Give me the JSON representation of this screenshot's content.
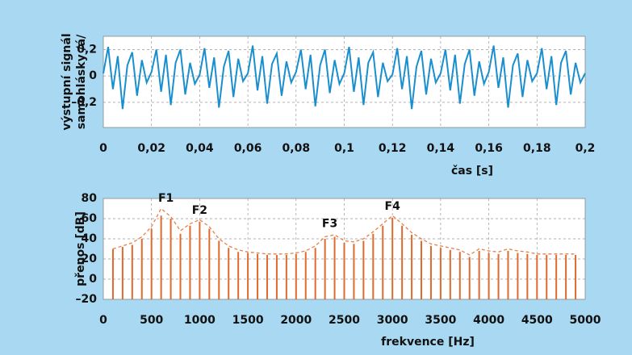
{
  "chart_data": [
    {
      "type": "line",
      "xlabel": "čas [s]",
      "ylabel": [
        "výstupní signál",
        "samohlásky /á/"
      ],
      "xlim": [
        0,
        0.2
      ],
      "ylim": [
        -0.39,
        0.3
      ],
      "xticks": [
        0,
        {
          "value": 0.02,
          "label": "0,02"
        },
        {
          "value": 0.04,
          "label": "0,04"
        },
        {
          "value": 0.06,
          "label": "0,06"
        },
        {
          "value": 0.08,
          "label": "0,08"
        },
        {
          "value": 0.1,
          "label": "0,1"
        },
        {
          "value": 0.12,
          "label": "0,12"
        },
        {
          "value": 0.14,
          "label": "0,14"
        },
        {
          "value": 0.16,
          "label": "0,16"
        },
        {
          "value": 0.18,
          "label": "0,18"
        },
        {
          "value": 0.2,
          "label": "0,2"
        }
      ],
      "yticks": [
        {
          "value": -0.2,
          "label": "–0,2"
        },
        0,
        {
          "value": 0.2,
          "label": "0,2"
        }
      ],
      "grid": true,
      "x": [
        0,
        0.002,
        0.004,
        0.006,
        0.008,
        0.01,
        0.012,
        0.014,
        0.016,
        0.018,
        0.02,
        0.022,
        0.024,
        0.026,
        0.028,
        0.03,
        0.032,
        0.034,
        0.036,
        0.038,
        0.04,
        0.042,
        0.044,
        0.046,
        0.048,
        0.05,
        0.052,
        0.054,
        0.056,
        0.058,
        0.06,
        0.062,
        0.064,
        0.066,
        0.068,
        0.07,
        0.072,
        0.074,
        0.076,
        0.078,
        0.08,
        0.082,
        0.084,
        0.086,
        0.088,
        0.09,
        0.092,
        0.094,
        0.096,
        0.098,
        0.1,
        0.102,
        0.104,
        0.106,
        0.108,
        0.11,
        0.112,
        0.114,
        0.116,
        0.118,
        0.12,
        0.122,
        0.124,
        0.126,
        0.128,
        0.13,
        0.132,
        0.134,
        0.136,
        0.138,
        0.14,
        0.142,
        0.144,
        0.146,
        0.148,
        0.15,
        0.152,
        0.154,
        0.156,
        0.158,
        0.16,
        0.162,
        0.164,
        0.166,
        0.168,
        0.17,
        0.172,
        0.174,
        0.176,
        0.178,
        0.18,
        0.182,
        0.184,
        0.186,
        0.188,
        0.19,
        0.192,
        0.194,
        0.196,
        0.198,
        0.2
      ],
      "series": [
        {
          "color": "#1a8fd0",
          "values": [
            0.02,
            0.22,
            -0.1,
            0.15,
            -0.25,
            0.08,
            0.18,
            -0.15,
            0.12,
            -0.05,
            0.03,
            0.2,
            -0.12,
            0.16,
            -0.22,
            0.1,
            0.2,
            -0.14,
            0.1,
            -0.06,
            0.01,
            0.21,
            -0.09,
            0.14,
            -0.24,
            0.07,
            0.19,
            -0.16,
            0.13,
            -0.04,
            0.02,
            0.23,
            -0.11,
            0.15,
            -0.21,
            0.09,
            0.17,
            -0.15,
            0.11,
            -0.05,
            0.03,
            0.2,
            -0.1,
            0.16,
            -0.23,
            0.08,
            0.2,
            -0.13,
            0.12,
            -0.06,
            0.02,
            0.22,
            -0.12,
            0.14,
            -0.22,
            0.1,
            0.18,
            -0.16,
            0.1,
            -0.04,
            0.01,
            0.21,
            -0.1,
            0.15,
            -0.25,
            0.07,
            0.19,
            -0.14,
            0.13,
            -0.05,
            0.02,
            0.2,
            -0.11,
            0.16,
            -0.21,
            0.09,
            0.2,
            -0.15,
            0.11,
            -0.06,
            0.03,
            0.23,
            -0.09,
            0.14,
            -0.24,
            0.08,
            0.17,
            -0.16,
            0.12,
            -0.04,
            0.02,
            0.21,
            -0.1,
            0.15,
            -0.22,
            0.1,
            0.19,
            -0.14,
            0.1,
            -0.05,
            0.02
          ]
        }
      ]
    },
    {
      "type": "stem",
      "xlabel": "frekvence [Hz]",
      "ylabel": [
        "přenos [dB]"
      ],
      "xlim": [
        0,
        5000
      ],
      "ylim": [
        -20,
        80
      ],
      "xticks": [
        0,
        500,
        1000,
        1500,
        2000,
        2500,
        3000,
        3500,
        4000,
        4500,
        5000
      ],
      "yticks": [
        {
          "value": -20,
          "label": "–20"
        },
        0,
        20,
        40,
        60,
        80
      ],
      "grid": true,
      "x": [
        100,
        200,
        300,
        400,
        500,
        600,
        700,
        800,
        900,
        1000,
        1100,
        1200,
        1300,
        1400,
        1500,
        1600,
        1700,
        1800,
        1900,
        2000,
        2100,
        2200,
        2300,
        2400,
        2500,
        2600,
        2700,
        2800,
        2900,
        3000,
        3100,
        3200,
        3300,
        3400,
        3500,
        3600,
        3700,
        3800,
        3900,
        4000,
        4100,
        4200,
        4300,
        4400,
        4500,
        4600,
        4700,
        4800,
        4900
      ],
      "series": [
        {
          "color": "#e06a2c",
          "values": [
            30,
            32,
            34,
            40,
            50,
            63,
            60,
            45,
            53,
            57,
            50,
            38,
            31,
            27,
            26,
            25,
            24,
            24,
            24,
            25,
            27,
            31,
            40,
            42,
            36,
            35,
            38,
            45,
            53,
            61,
            53,
            44,
            38,
            33,
            31,
            29,
            27,
            22,
            28,
            26,
            25,
            28,
            26,
            25,
            24,
            24,
            24,
            24,
            24
          ]
        },
        {
          "color": "#e8804a",
          "dashed": true,
          "values": [
            30,
            33,
            36,
            42,
            52,
            70,
            62,
            48,
            55,
            59,
            52,
            40,
            33,
            29,
            27,
            26,
            25,
            25,
            25,
            26,
            28,
            33,
            42,
            44,
            38,
            37,
            40,
            47,
            55,
            63,
            55,
            46,
            40,
            35,
            33,
            31,
            29,
            24,
            30,
            28,
            27,
            30,
            28,
            27,
            25,
            25,
            25,
            25,
            25
          ]
        }
      ],
      "annotations": [
        {
          "text": "F1",
          "x": 650,
          "y": 72
        },
        {
          "text": "F2",
          "x": 1000,
          "y": 60
        },
        {
          "text": "F3",
          "x": 2350,
          "y": 47
        },
        {
          "text": "F4",
          "x": 3000,
          "y": 64
        }
      ]
    }
  ]
}
